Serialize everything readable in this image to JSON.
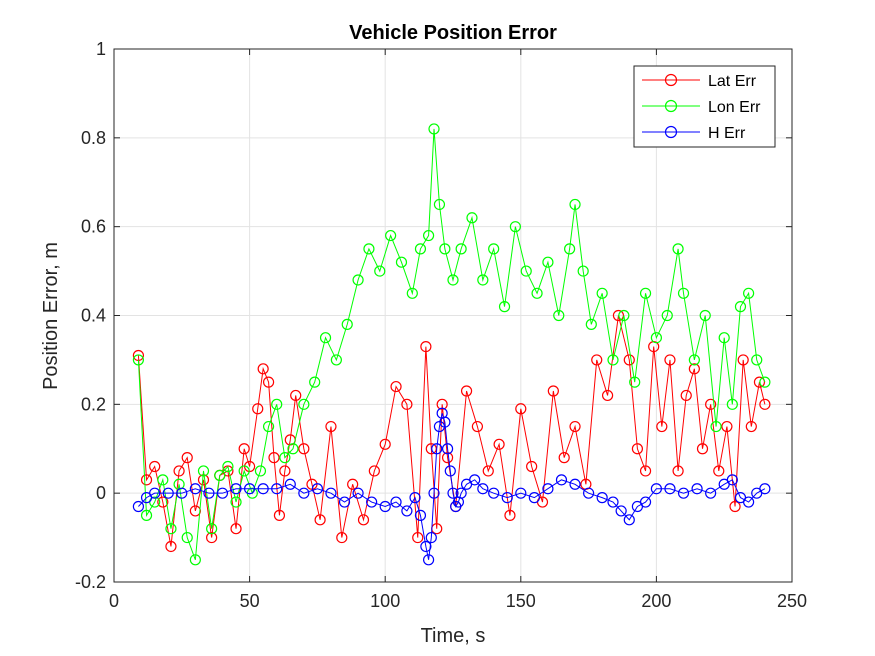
{
  "chart_data": {
    "type": "line",
    "title": "Vehicle Position Error",
    "xlabel": "Time, s",
    "ylabel": "Position Error, m",
    "xlim": [
      0,
      250
    ],
    "ylim": [
      -0.2,
      1
    ],
    "xticks": [
      "0",
      "50",
      "100",
      "150",
      "200",
      "250"
    ],
    "yticks": [
      "-0.2",
      "0",
      "0.2",
      "0.4",
      "0.6",
      "0.8",
      "1"
    ],
    "grid": true,
    "legend_position": "top-right",
    "marker": "circle",
    "series": [
      {
        "name": "Lat Err",
        "color": "#ff0000",
        "x": [
          9,
          12,
          15,
          18,
          21,
          24,
          27,
          30,
          33,
          36,
          39,
          42,
          45,
          48,
          50,
          53,
          55,
          57,
          59,
          61,
          63,
          65,
          67,
          70,
          73,
          76,
          80,
          84,
          88,
          92,
          96,
          100,
          104,
          108,
          112,
          115,
          117,
          119,
          121,
          123,
          126,
          130,
          134,
          138,
          142,
          146,
          150,
          154,
          158,
          162,
          166,
          170,
          174,
          178,
          182,
          186,
          190,
          193,
          196,
          199,
          202,
          205,
          208,
          211,
          214,
          217,
          220,
          223,
          226,
          229,
          232,
          235,
          238,
          240
        ],
        "y": [
          0.31,
          0.03,
          0.06,
          -0.02,
          -0.12,
          0.05,
          0.08,
          -0.04,
          0.03,
          -0.1,
          0.04,
          0.05,
          -0.08,
          0.1,
          0.06,
          0.19,
          0.28,
          0.25,
          0.08,
          -0.05,
          0.05,
          0.12,
          0.22,
          0.1,
          0.02,
          -0.06,
          0.15,
          -0.1,
          0.02,
          -0.06,
          0.05,
          0.11,
          0.24,
          0.2,
          -0.1,
          0.33,
          0.1,
          -0.08,
          0.2,
          0.08,
          -0.03,
          0.23,
          0.15,
          0.05,
          0.11,
          -0.05,
          0.19,
          0.06,
          -0.02,
          0.23,
          0.08,
          0.15,
          0.02,
          0.3,
          0.22,
          0.4,
          0.3,
          0.1,
          0.05,
          0.33,
          0.15,
          0.3,
          0.05,
          0.22,
          0.28,
          0.1,
          0.2,
          0.05,
          0.15,
          -0.03,
          0.3,
          0.15,
          0.25,
          0.2
        ]
      },
      {
        "name": "Lon Err",
        "color": "#00ff00",
        "x": [
          9,
          12,
          15,
          18,
          21,
          24,
          27,
          30,
          33,
          36,
          39,
          42,
          45,
          48,
          51,
          54,
          57,
          60,
          63,
          66,
          70,
          74,
          78,
          82,
          86,
          90,
          94,
          98,
          102,
          106,
          110,
          113,
          116,
          118,
          120,
          122,
          125,
          128,
          132,
          136,
          140,
          144,
          148,
          152,
          156,
          160,
          164,
          168,
          170,
          173,
          176,
          180,
          184,
          188,
          192,
          196,
          200,
          204,
          208,
          210,
          214,
          218,
          222,
          225,
          228,
          231,
          234,
          237,
          240
        ],
        "y": [
          0.3,
          -0.05,
          -0.02,
          0.03,
          -0.08,
          0.02,
          -0.1,
          -0.15,
          0.05,
          -0.08,
          0.04,
          0.06,
          -0.02,
          0.05,
          0.0,
          0.05,
          0.15,
          0.2,
          0.08,
          0.1,
          0.2,
          0.25,
          0.35,
          0.3,
          0.38,
          0.48,
          0.55,
          0.5,
          0.58,
          0.52,
          0.45,
          0.55,
          0.58,
          0.82,
          0.65,
          0.55,
          0.48,
          0.55,
          0.62,
          0.48,
          0.55,
          0.42,
          0.6,
          0.5,
          0.45,
          0.52,
          0.4,
          0.55,
          0.65,
          0.5,
          0.38,
          0.45,
          0.3,
          0.4,
          0.25,
          0.45,
          0.35,
          0.4,
          0.55,
          0.45,
          0.3,
          0.4,
          0.15,
          0.35,
          0.2,
          0.42,
          0.45,
          0.3,
          0.25
        ]
      },
      {
        "name": "H Err",
        "color": "#0000ff",
        "x": [
          9,
          12,
          15,
          20,
          25,
          30,
          35,
          40,
          45,
          50,
          55,
          60,
          65,
          70,
          75,
          80,
          85,
          90,
          95,
          100,
          104,
          108,
          111,
          113,
          115,
          116,
          117,
          118,
          119,
          120,
          121,
          122,
          123,
          124,
          125,
          126,
          127,
          128,
          130,
          133,
          136,
          140,
          145,
          150,
          155,
          160,
          165,
          170,
          175,
          180,
          184,
          187,
          190,
          193,
          196,
          200,
          205,
          210,
          215,
          220,
          225,
          228,
          231,
          234,
          237,
          240
        ],
        "y": [
          -0.03,
          -0.01,
          0.0,
          0.0,
          0.0,
          0.01,
          0.0,
          0.0,
          0.01,
          0.01,
          0.01,
          0.01,
          0.02,
          0.0,
          0.01,
          0.0,
          -0.02,
          0.0,
          -0.02,
          -0.03,
          -0.02,
          -0.04,
          -0.01,
          -0.05,
          -0.12,
          -0.15,
          -0.1,
          0.0,
          0.1,
          0.15,
          0.18,
          0.16,
          0.1,
          0.05,
          0.0,
          -0.03,
          -0.02,
          0.0,
          0.02,
          0.03,
          0.01,
          0.0,
          -0.01,
          0.0,
          -0.01,
          0.01,
          0.03,
          0.02,
          0.0,
          -0.01,
          -0.02,
          -0.04,
          -0.06,
          -0.03,
          -0.02,
          0.01,
          0.01,
          0.0,
          0.01,
          0.0,
          0.02,
          0.03,
          -0.01,
          -0.02,
          0.0,
          0.01
        ]
      }
    ]
  }
}
